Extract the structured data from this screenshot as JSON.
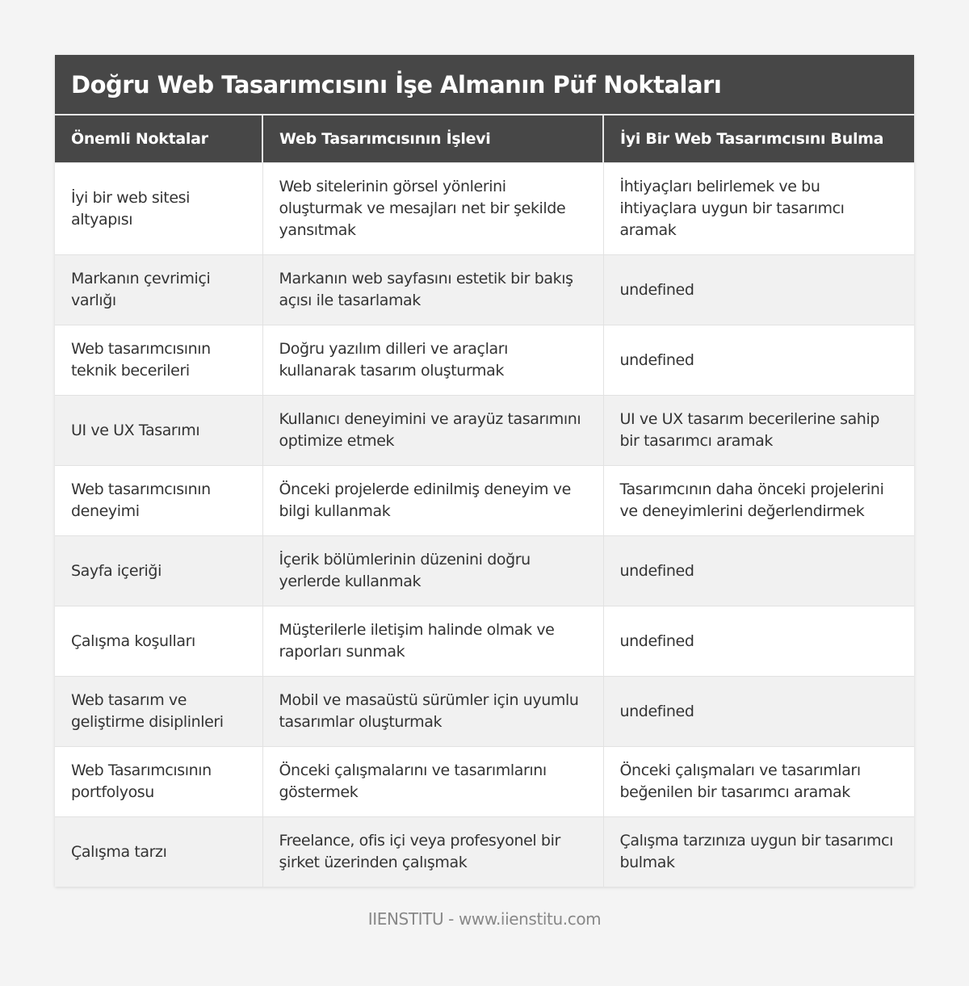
{
  "title": "Doğru Web Tasarımcısını İşe Almanın Püf Noktaları",
  "columns": [
    "Önemli Noktalar",
    "Web Tasarımcısının İşlevi",
    "İyi Bir Web Tasarımcısını Bulma"
  ],
  "rows": [
    [
      "İyi bir web sitesi altyapısı",
      "Web sitelerinin görsel yönlerini oluşturmak ve mesajları net bir şekilde yansıtmak",
      "İhtiyaçları belirlemek ve bu ihtiyaçlara uygun bir tasarımcı aramak"
    ],
    [
      "Markanın çevrimiçi varlığı",
      "Markanın web sayfasını estetik bir bakış açısı ile tasarlamak",
      "undefined"
    ],
    [
      "Web tasarımcısının teknik becerileri",
      "Doğru yazılım dilleri ve araçları kullanarak tasarım oluşturmak",
      "undefined"
    ],
    [
      "UI ve UX Tasarımı",
      "Kullanıcı deneyimini ve arayüz tasarımını optimize etmek",
      "UI ve UX tasarım becerilerine sahip bir tasarımcı aramak"
    ],
    [
      "Web tasarımcısının deneyimi",
      "Önceki projelerde edinilmiş deneyim ve bilgi kullanmak",
      "Tasarımcının daha önceki projelerini ve deneyimlerini değerlendirmek"
    ],
    [
      "Sayfa içeriği",
      "İçerik bölümlerinin düzenini doğru yerlerde kullanmak",
      "undefined"
    ],
    [
      "Çalışma koşulları",
      "Müşterilerle iletişim halinde olmak ve raporları sunmak",
      "undefined"
    ],
    [
      "Web tasarım ve geliştirme disiplinleri",
      "Mobil ve masaüstü sürümler için uyumlu tasarımlar oluşturmak",
      "undefined"
    ],
    [
      "Web Tasarımcısının portfolyosu",
      "Önceki çalışmalarını ve tasarımlarını göstermek",
      "Önceki çalışmaları ve tasarımları beğenilen bir tasarımcı aramak"
    ],
    [
      "Çalışma tarzı",
      "Freelance, ofis içi veya profesyonel bir şirket üzerinden çalışmak",
      "Çalışma tarzınıza uygun bir tasarımcı bulmak"
    ]
  ],
  "footer": "IIENSTITU - www.iienstitu.com"
}
